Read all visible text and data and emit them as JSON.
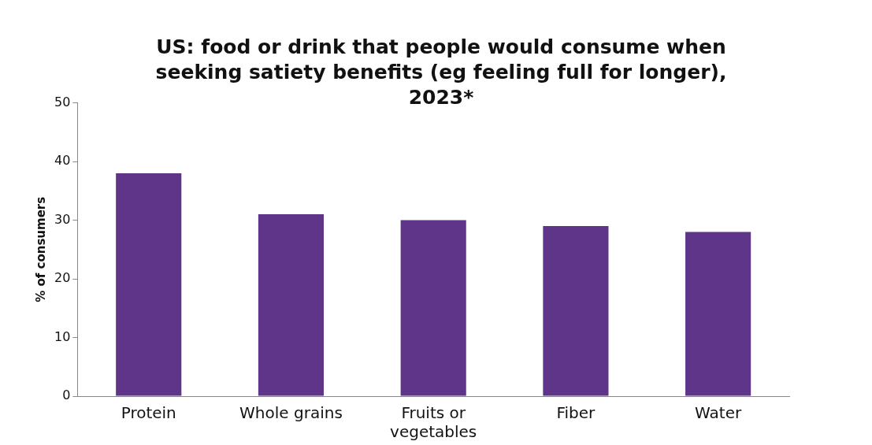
{
  "chart_data": {
    "type": "bar",
    "title": "US: food or drink that people would consume when seeking satiety benefits (eg feeling full for longer), 2023*",
    "ylabel": "% of consumers",
    "categories": [
      "Protein",
      "Whole grains",
      "Fruits or vegetables",
      "Fiber",
      "Water"
    ],
    "values": [
      38,
      31,
      30,
      29,
      28
    ],
    "color": "#5e3589",
    "ylim": [
      0,
      50
    ],
    "yticks": [
      0,
      10,
      20,
      30,
      40,
      50
    ],
    "grid": false
  }
}
